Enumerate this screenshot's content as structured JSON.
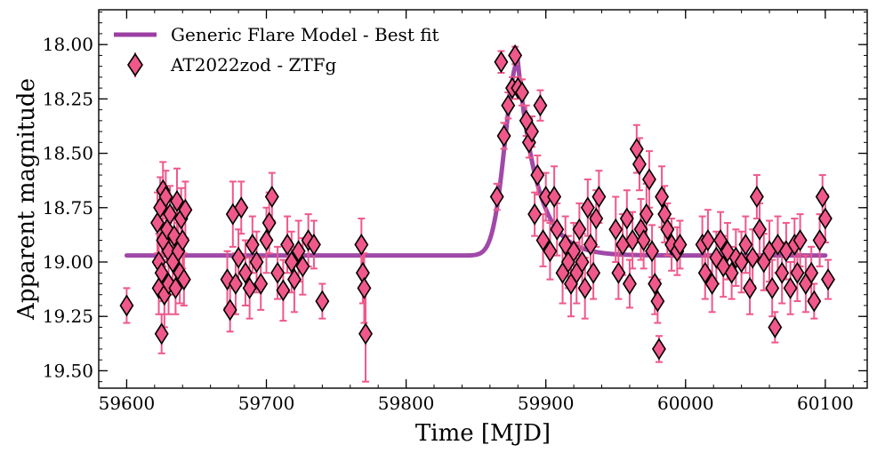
{
  "chart_data": {
    "type": "scatter",
    "title": "",
    "xlabel": "Time [MJD]",
    "ylabel": "Apparent magnitude",
    "xlim": [
      59580,
      60130
    ],
    "ylim": [
      19.58,
      17.84
    ],
    "y_inverted": true,
    "xticks": [
      59600,
      59700,
      59800,
      59900,
      60000,
      60100
    ],
    "yticks": [
      18.0,
      18.25,
      18.5,
      18.75,
      19.0,
      19.25,
      19.5
    ],
    "xtick_labels": [
      "59600",
      "59700",
      "59800",
      "59900",
      "60000",
      "60100"
    ],
    "ytick_labels": [
      "18.00",
      "18.25",
      "18.50",
      "18.75",
      "19.00",
      "19.25",
      "19.50"
    ],
    "legend_position": "top-left",
    "colors": {
      "model": "#9b3fa3",
      "points": "#f0588a",
      "errorbar": "#f0588a",
      "marker_edge": "#000000"
    },
    "series": [
      {
        "name": "Generic Flare Model - Best fit",
        "kind": "line",
        "baseline": 18.97,
        "peak_time": 59880,
        "peak_mag": 18.08,
        "rise_sigma": 9,
        "decay_tau": 14,
        "x_range": [
          59600,
          60100
        ]
      },
      {
        "name": "AT2022zod - ZTFg",
        "kind": "errorbar-scatter",
        "points": [
          [
            59600,
            19.2,
            0.08
          ],
          [
            59622,
            18.82,
            0.14
          ],
          [
            59623,
            19.0,
            0.13
          ],
          [
            59623,
            19.12,
            0.12
          ],
          [
            59624,
            18.75,
            0.14
          ],
          [
            59625,
            19.33,
            0.09
          ],
          [
            59625,
            19.05,
            0.13
          ],
          [
            59626,
            18.67,
            0.13
          ],
          [
            59626,
            18.9,
            0.12
          ],
          [
            59627,
            19.15,
            0.15
          ],
          [
            59628,
            18.7,
            0.12
          ],
          [
            59629,
            18.85,
            0.14
          ],
          [
            59630,
            19.1,
            0.14
          ],
          [
            59630,
            18.95,
            0.13
          ],
          [
            59631,
            18.78,
            0.13
          ],
          [
            59633,
            19.0,
            0.15
          ],
          [
            59634,
            18.88,
            0.13
          ],
          [
            59635,
            19.12,
            0.12
          ],
          [
            59636,
            18.72,
            0.15
          ],
          [
            59637,
            18.95,
            0.13
          ],
          [
            59638,
            19.05,
            0.14
          ],
          [
            59639,
            18.8,
            0.14
          ],
          [
            59640,
            18.9,
            0.13
          ],
          [
            59641,
            19.08,
            0.12
          ],
          [
            59642,
            18.76,
            0.13
          ],
          [
            59672,
            19.08,
            0.13
          ],
          [
            59674,
            19.22,
            0.1
          ],
          [
            59676,
            18.78,
            0.15
          ],
          [
            59678,
            19.1,
            0.14
          ],
          [
            59680,
            18.98,
            0.13
          ],
          [
            59682,
            18.75,
            0.12
          ],
          [
            59685,
            19.05,
            0.15
          ],
          [
            59688,
            19.12,
            0.14
          ],
          [
            59690,
            18.92,
            0.13
          ],
          [
            59693,
            19.0,
            0.14
          ],
          [
            59696,
            19.1,
            0.12
          ],
          [
            59700,
            18.9,
            0.15
          ],
          [
            59702,
            18.82,
            0.14
          ],
          [
            59704,
            18.7,
            0.11
          ],
          [
            59708,
            19.05,
            0.12
          ],
          [
            59712,
            19.13,
            0.14
          ],
          [
            59715,
            18.92,
            0.13
          ],
          [
            59718,
            19.0,
            0.14
          ],
          [
            59720,
            19.08,
            0.15
          ],
          [
            59723,
            18.95,
            0.14
          ],
          [
            59726,
            19.02,
            0.13
          ],
          [
            59730,
            18.9,
            0.12
          ],
          [
            59734,
            18.92,
            0.11
          ],
          [
            59740,
            19.18,
            0.08
          ],
          [
            59768,
            18.92,
            0.12
          ],
          [
            59769,
            19.05,
            0.14
          ],
          [
            59770,
            19.12,
            0.16
          ],
          [
            59771,
            19.33,
            0.22
          ],
          [
            59865,
            18.7,
            0.06
          ],
          [
            59868,
            18.08,
            0.05
          ],
          [
            59870,
            18.42,
            0.06
          ],
          [
            59873,
            18.28,
            0.06
          ],
          [
            59876,
            18.2,
            0.05
          ],
          [
            59878,
            18.05,
            0.04
          ],
          [
            59880,
            18.2,
            0.05
          ],
          [
            59883,
            18.22,
            0.06
          ],
          [
            59886,
            18.35,
            0.07
          ],
          [
            59888,
            18.45,
            0.07
          ],
          [
            59890,
            18.4,
            0.07
          ],
          [
            59892,
            18.78,
            0.1
          ],
          [
            59894,
            18.6,
            0.09
          ],
          [
            59896,
            18.28,
            0.07
          ],
          [
            59898,
            18.9,
            0.12
          ],
          [
            59900,
            18.7,
            0.11
          ],
          [
            59903,
            18.95,
            0.13
          ],
          [
            59906,
            18.7,
            0.14
          ],
          [
            59908,
            18.85,
            0.12
          ],
          [
            59912,
            19.05,
            0.14
          ],
          [
            59914,
            18.92,
            0.13
          ],
          [
            59916,
            19.0,
            0.12
          ],
          [
            59918,
            19.1,
            0.15
          ],
          [
            59920,
            18.95,
            0.13
          ],
          [
            59922,
            19.05,
            0.14
          ],
          [
            59924,
            18.85,
            0.12
          ],
          [
            59926,
            19.0,
            0.13
          ],
          [
            59928,
            19.12,
            0.14
          ],
          [
            59930,
            18.75,
            0.13
          ],
          [
            59932,
            18.92,
            0.14
          ],
          [
            59934,
            19.05,
            0.12
          ],
          [
            59936,
            18.8,
            0.13
          ],
          [
            59938,
            18.7,
            0.12
          ],
          [
            59950,
            18.85,
            0.15
          ],
          [
            59952,
            19.05,
            0.12
          ],
          [
            59955,
            18.92,
            0.14
          ],
          [
            59958,
            18.8,
            0.13
          ],
          [
            59960,
            19.1,
            0.11
          ],
          [
            59962,
            18.9,
            0.13
          ],
          [
            59965,
            18.48,
            0.11
          ],
          [
            59967,
            18.55,
            0.12
          ],
          [
            59968,
            18.85,
            0.14
          ],
          [
            59970,
            18.9,
            0.13
          ],
          [
            59972,
            18.78,
            0.14
          ],
          [
            59974,
            18.62,
            0.13
          ],
          [
            59976,
            18.95,
            0.12
          ],
          [
            59978,
            19.1,
            0.14
          ],
          [
            59980,
            19.18,
            0.1
          ],
          [
            59981,
            19.4,
            0.06
          ],
          [
            59983,
            18.7,
            0.14
          ],
          [
            59985,
            18.78,
            0.13
          ],
          [
            59987,
            18.85,
            0.12
          ],
          [
            59990,
            18.92,
            0.12
          ],
          [
            59994,
            18.95,
            0.11
          ],
          [
            59996,
            18.92,
            0.11
          ],
          [
            60012,
            18.92,
            0.13
          ],
          [
            60014,
            19.05,
            0.12
          ],
          [
            60016,
            18.9,
            0.14
          ],
          [
            60019,
            19.1,
            0.13
          ],
          [
            60022,
            18.98,
            0.12
          ],
          [
            60025,
            18.9,
            0.13
          ],
          [
            60027,
            19.02,
            0.14
          ],
          [
            60030,
            18.95,
            0.13
          ],
          [
            60033,
            19.05,
            0.12
          ],
          [
            60036,
            18.98,
            0.13
          ],
          [
            60040,
            19.0,
            0.14
          ],
          [
            60043,
            18.92,
            0.13
          ],
          [
            60046,
            19.12,
            0.12
          ],
          [
            60048,
            18.98,
            0.13
          ],
          [
            60051,
            18.7,
            0.1
          ],
          [
            60053,
            18.85,
            0.12
          ],
          [
            60056,
            19.0,
            0.13
          ],
          [
            60060,
            18.95,
            0.14
          ],
          [
            60062,
            19.12,
            0.13
          ],
          [
            60064,
            19.3,
            0.07
          ],
          [
            60066,
            18.92,
            0.13
          ],
          [
            60069,
            19.05,
            0.14
          ],
          [
            60072,
            18.95,
            0.13
          ],
          [
            60075,
            19.12,
            0.12
          ],
          [
            60078,
            18.92,
            0.12
          ],
          [
            60080,
            19.05,
            0.13
          ],
          [
            60082,
            18.9,
            0.12
          ],
          [
            60086,
            19.1,
            0.13
          ],
          [
            60090,
            19.05,
            0.12
          ],
          [
            60092,
            19.18,
            0.08
          ],
          [
            60096,
            18.9,
            0.12
          ],
          [
            60098,
            18.7,
            0.1
          ],
          [
            60100,
            18.8,
            0.11
          ],
          [
            60102,
            19.08,
            0.09
          ]
        ]
      }
    ]
  }
}
